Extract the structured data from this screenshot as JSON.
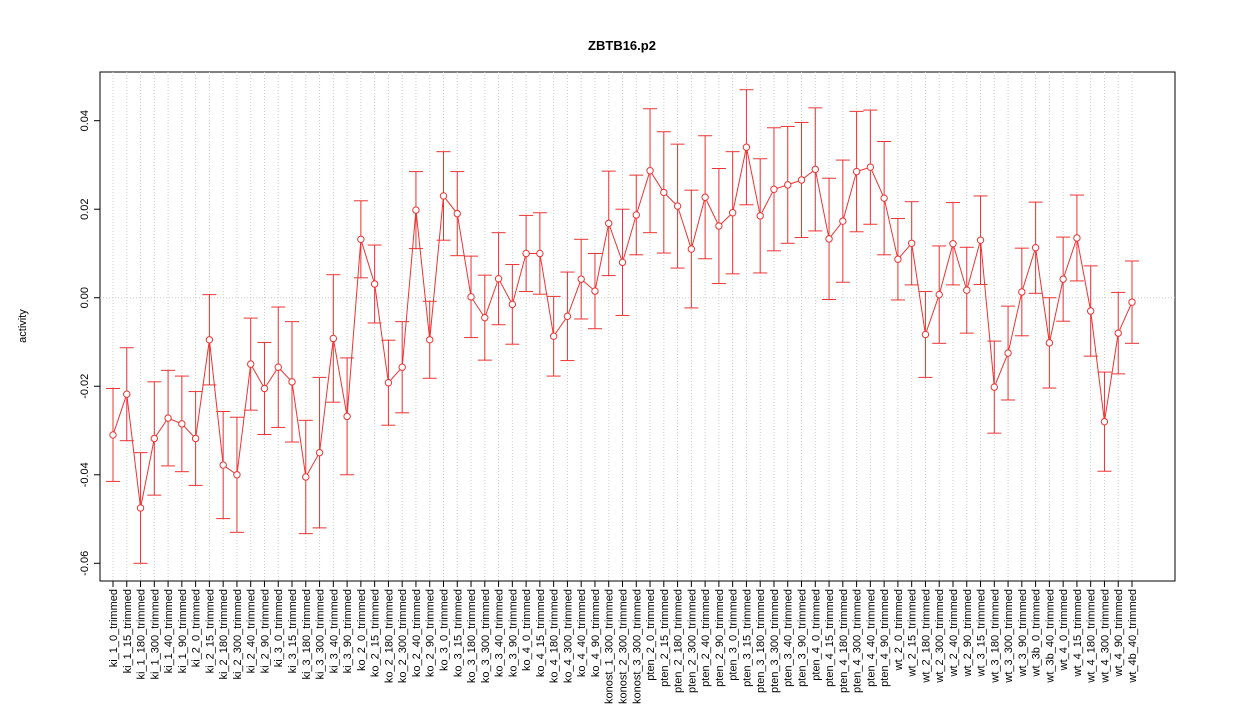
{
  "chart_data": {
    "type": "line",
    "title": "ZBTB16.p2",
    "y_label": "activity",
    "color": "#ee3333",
    "grid": true,
    "reference_line": 0,
    "ylim": [
      -0.064,
      0.051
    ],
    "yticks": [
      -0.06,
      -0.04,
      -0.02,
      {
        "value": 0,
        "label": "0.00"
      },
      0.02,
      0.04
    ],
    "categories": [
      "ki_1_0_trimmed",
      "ki_1_15_trimmed",
      "ki_1_180_trimmed",
      "ki_1_300_trimmed",
      "ki_1_40_trimmed",
      "ki_1_90_trimmed",
      "ki_2_0_trimmed",
      "ki_2_15_trimmed",
      "ki_2_180_trimmed",
      "ki_2_300_trimmed",
      "ki_2_40_trimmed",
      "ki_2_90_trimmed",
      "ki_3_0_trimmed",
      "ki_3_15_trimmed",
      "ki_3_180_trimmed",
      "ki_3_300_trimmed",
      "ki_3_40_trimmed",
      "ki_3_90_trimmed",
      "ko_2_0_trimmed",
      "ko_2_15_trimmed",
      "ko_2_180_trimmed",
      "ko_2_300_trimmed",
      "ko_2_40_trimmed",
      "ko_2_90_trimmed",
      "ko_3_0_trimmed",
      "ko_3_15_trimmed",
      "ko_3_180_trimmed",
      "ko_3_300_trimmed",
      "ko_3_40_trimmed",
      "ko_3_90_trimmed",
      "ko_4_0_trimmed",
      "ko_4_15_trimmed",
      "ko_4_180_trimmed",
      "ko_4_300_trimmed",
      "ko_4_40_trimmed",
      "ko_4_90_trimmed",
      "konost_1_300_trimmed",
      "konost_2_300_trimmed",
      "konost_3_300_trimmed",
      "pten_2_0_trimmed",
      "pten_2_15_trimmed",
      "pten_2_180_trimmed",
      "pten_2_300_trimmed",
      "pten_2_40_trimmed",
      "pten_2_90_trimmed",
      "pten_3_0_trimmed",
      "pten_3_15_trimmed",
      "pten_3_180_trimmed",
      "pten_3_300_trimmed",
      "pten_3_40_trimmed",
      "pten_3_90_trimmed",
      "pten_4_0_trimmed",
      "pten_4_15_trimmed",
      "pten_4_180_trimmed",
      "pten_4_300_trimmed",
      "pten_4_40_trimmed",
      "pten_4_90_trimmed",
      "wt_2_0_trimmed",
      "wt_2_15_trimmed",
      "wt_2_180_trimmed",
      "wt_2_300_trimmed",
      "wt_2_40_trimmed",
      "wt_2_90_trimmed",
      "wt_3_15_trimmed",
      "wt_3_180_trimmed",
      "wt_3_300_trimmed",
      "wt_3_90_trimmed",
      "wt_3b_0_trimmed",
      "wt_3b_40_trimmed",
      "wt_4_0_trimmed",
      "wt_4_15_trimmed",
      "wt_4_180_trimmed",
      "wt_4_300_trimmed",
      "wt_4_90_trimmed",
      "wt_4b_40_trimmed"
    ],
    "values": [
      -0.031,
      -0.0218,
      -0.0475,
      -0.0318,
      -0.0272,
      -0.0285,
      -0.0318,
      -0.0095,
      -0.0378,
      -0.04,
      -0.015,
      -0.0205,
      -0.0157,
      -0.019,
      -0.0405,
      -0.035,
      -0.0092,
      -0.0268,
      0.0132,
      0.0031,
      -0.0192,
      -0.0157,
      0.0198,
      -0.0095,
      0.023,
      0.019,
      0.0002,
      -0.0045,
      0.0043,
      -0.0015,
      0.01,
      0.01,
      -0.0087,
      -0.0042,
      0.0042,
      0.0015,
      0.0168,
      0.008,
      0.0187,
      0.0287,
      0.0238,
      0.0207,
      0.011,
      0.0227,
      0.0162,
      0.0192,
      0.034,
      0.0185,
      0.0245,
      0.0255,
      0.0266,
      0.029,
      0.0133,
      0.0173,
      0.0285,
      0.0295,
      0.0225,
      0.0087,
      0.0123,
      -0.0083,
      0.0007,
      0.0122,
      0.0017,
      0.013,
      -0.0202,
      -0.0125,
      0.0013,
      0.0113,
      -0.0102,
      0.0042,
      0.0135,
      -0.003,
      -0.028,
      -0.008,
      -0.001
    ],
    "errors": [
      0.0105,
      0.0105,
      0.0125,
      0.0128,
      0.0108,
      0.0108,
      0.0106,
      0.0102,
      0.0121,
      0.013,
      0.0104,
      0.0104,
      0.0136,
      0.0136,
      0.0128,
      0.017,
      0.0144,
      0.0132,
      0.0087,
      0.0088,
      0.0096,
      0.0103,
      0.0087,
      0.0087,
      0.01,
      0.0095,
      0.0092,
      0.0096,
      0.0104,
      0.009,
      0.0086,
      0.0092,
      0.009,
      0.01,
      0.009,
      0.0085,
      0.0118,
      0.012,
      0.009,
      0.014,
      0.0137,
      0.014,
      0.0133,
      0.0139,
      0.013,
      0.0138,
      0.013,
      0.0129,
      0.0139,
      0.0132,
      0.013,
      0.0139,
      0.0137,
      0.0138,
      0.0136,
      0.0129,
      0.0128,
      0.0092,
      0.0094,
      0.0097,
      0.011,
      0.0093,
      0.0097,
      0.01,
      0.0104,
      0.0106,
      0.0099,
      0.0103,
      0.0102,
      0.0095,
      0.0097,
      0.0102,
      0.0112,
      0.0092,
      0.0093
    ]
  }
}
